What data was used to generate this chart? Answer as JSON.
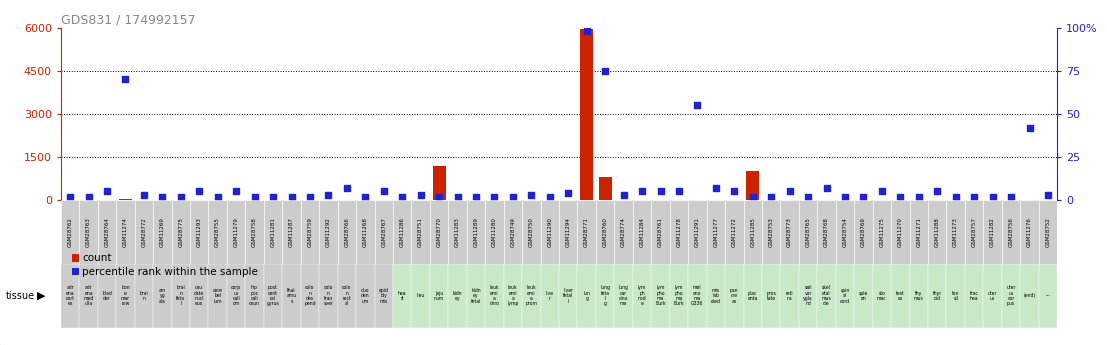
{
  "title": "GDS831 / 174992157",
  "gsm_ids": [
    "GSM28762",
    "GSM28763",
    "GSM28764",
    "GSM11274",
    "GSM28772",
    "GSM11269",
    "GSM28775",
    "GSM11293",
    "GSM28755",
    "GSM11279",
    "GSM28758",
    "GSM11281",
    "GSM11287",
    "GSM28759",
    "GSM11292",
    "GSM28766",
    "GSM11268",
    "GSM28767",
    "GSM11286",
    "GSM28751",
    "GSM28770",
    "GSM11283",
    "GSM11289",
    "GSM11280",
    "GSM28749",
    "GSM28750",
    "GSM11290",
    "GSM11294",
    "GSM28771",
    "GSM28760",
    "GSM28774",
    "GSM11284",
    "GSM28761",
    "GSM11278",
    "GSM11291",
    "GSM11277",
    "GSM11272",
    "GSM11285",
    "GSM28753",
    "GSM28773",
    "GSM28765",
    "GSM28768",
    "GSM28754",
    "GSM28769",
    "GSM11275",
    "GSM11270",
    "GSM11271",
    "GSM11288",
    "GSM11273",
    "GSM28757",
    "GSM11282",
    "GSM28756",
    "GSM11276",
    "GSM28752"
  ],
  "tissues": [
    "adr\nena\ncort\nex",
    "adr\nena\nmed\nulla",
    "blad\nder",
    "bon\ne\nmar\nrow",
    "brai\nn",
    "am\nyg\nala",
    "brai\nn\nfeta\nl",
    "cau\ndate\nnucl\neus",
    "cere\nbel\nlum",
    "corp\nus\ncall\nom",
    "hip\npoc\ncali\nosun",
    "post\ncent\nral\ngyrus",
    "thal\namu\ns",
    "colo\nn\ndes\npend",
    "colo\nn\ntran\nsver",
    "colo\nn\nrect\nal",
    "duo\nden\num",
    "epid\nidy\nmis",
    "hea\nrt",
    "lieu",
    "jeju\nnum",
    "kidn\ney",
    "kidn\ney\nfetal",
    "leuk\nemi\na\nchro",
    "leuk\nemi\na\nlymp",
    "leuk\nemi\na\nprom",
    "live\nr",
    "liver\nfetal\nl",
    "lun\ng",
    "lung\nfeta\nl\ng",
    "lung\ncar\ncino\nma",
    "lym\nph\nnod\ne",
    "lym\npho\nma\nBurk",
    "lym\npho\nma\nBurk",
    "mel\nano\nma\nG336",
    "mis\nlab\neled",
    "pan\ncre\nas",
    "plac\nenta",
    "pros\ntate",
    "reti\nna",
    "sali\nvar\nygla\nnd",
    "skel\netal\nmus\ncle",
    "spin\nal\ncord",
    "sple\nen",
    "sto\nmac",
    "test\nes",
    "thy\nmus",
    "thyr\noid",
    "ton\nsil",
    "trac\nhea",
    "uter\nus",
    "uter\nus\ncor\npus",
    "(end)",
    "---"
  ],
  "counts": [
    0,
    0,
    0,
    50,
    0,
    0,
    0,
    0,
    0,
    0,
    0,
    0,
    0,
    0,
    0,
    0,
    0,
    0,
    0,
    0,
    1200,
    0,
    0,
    0,
    0,
    0,
    0,
    0,
    5950,
    800,
    0,
    0,
    0,
    0,
    0,
    0,
    0,
    1000,
    0,
    0,
    0,
    0,
    0,
    0,
    0,
    0,
    0,
    0,
    0,
    0,
    0,
    0,
    0,
    0
  ],
  "percentiles": [
    2,
    2,
    5,
    70,
    3,
    2,
    2,
    5,
    2,
    5,
    2,
    2,
    2,
    2,
    3,
    7,
    2,
    5,
    2,
    3,
    2,
    2,
    2,
    2,
    2,
    3,
    2,
    4,
    98,
    75,
    3,
    5,
    5,
    5,
    55,
    7,
    5,
    2,
    2,
    5,
    2,
    7,
    2,
    2,
    5,
    2,
    2,
    5,
    2,
    2,
    2,
    2,
    42,
    3
  ],
  "ylim_left": [
    0,
    6000
  ],
  "ylim_right": [
    0,
    100
  ],
  "yticks_left": [
    0,
    1500,
    3000,
    4500,
    6000
  ],
  "yticks_right": [
    0,
    25,
    50,
    75,
    100
  ],
  "bar_color": "#cc2200",
  "dot_color": "#2222cc",
  "background_color": "#ffffff",
  "title_color": "#888888",
  "left_axis_color": "#cc2200",
  "right_axis_color": "#2222cc",
  "gsm_bg_color": "#cccccc",
  "tissue_gray_color": "#cccccc",
  "tissue_green_color": "#c8e8c8"
}
